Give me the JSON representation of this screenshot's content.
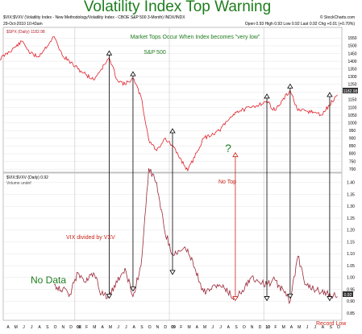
{
  "headline": "Volatility Index Top Warning",
  "header": {
    "symbol_line": "$VIX:$VXV (Volatility Index - New Methodology/Volatility Index - CBOE S&P 500 3-Month) INDX/INDX",
    "date": "29-Oct-2010 10:43am",
    "credit": "© StockCharts.com",
    "quote": "Open 0.93  High 0.93  Low 0.92  Last 0.92  Chg +0.01 (+0.70%)"
  },
  "colors": {
    "sp500": "#e0202a",
    "ratio": "#9a2a3a",
    "annotation_green": "#1e7d1e",
    "annotation_red": "#c8251a",
    "arrow": "#000000"
  },
  "chart_data": [
    {
      "type": "line",
      "title": "$SPX (Daily) 1182.98",
      "series": [
        {
          "name": "S&P 500",
          "x": [
            "2007-03",
            "2007-06",
            "2007-07",
            "2007-08",
            "2007-10",
            "2007-11",
            "2008-01",
            "2008-03",
            "2008-05",
            "2008-06",
            "2008-07",
            "2008-08",
            "2008-09",
            "2008-10",
            "2008-11",
            "2008-12",
            "2009-01",
            "2009-03",
            "2009-05",
            "2009-07",
            "2009-09",
            "2009-11",
            "2010-01",
            "2010-02",
            "2010-04",
            "2010-05",
            "2010-07",
            "2010-08",
            "2010-10"
          ],
          "values": [
            1410,
            1530,
            1450,
            1430,
            1560,
            1440,
            1350,
            1280,
            1420,
            1280,
            1250,
            1290,
            1170,
            890,
            820,
            900,
            850,
            690,
            900,
            950,
            1070,
            1100,
            1140,
            1080,
            1210,
            1080,
            1070,
            1050,
            1183
          ]
        }
      ],
      "ylim": [
        680,
        1620
      ],
      "yticks": [
        "1550",
        "1500",
        "1450",
        "1400",
        "1350",
        "1300",
        "1250",
        "1200",
        "1150",
        "1100",
        "1050",
        "1000",
        "950",
        "900",
        "850",
        "800",
        "750",
        "700"
      ],
      "last_label": "1182.98",
      "annotations": [
        "Market Tops Occur When Index becomes \"very low\"",
        "S&P 500",
        "?",
        "No Top"
      ]
    },
    {
      "type": "line",
      "title": "$VIX:$VXV (Daily) 0.92",
      "legend": "Volume undef",
      "series": [
        {
          "name": "VIX divided by VXV",
          "x": [
            "2007-10",
            "2007-12",
            "2008-01",
            "2008-02",
            "2008-03",
            "2008-04",
            "2008-05",
            "2008-06",
            "2008-07",
            "2008-08",
            "2008-09",
            "2008-10",
            "2008-11",
            "2008-12",
            "2009-01",
            "2009-03",
            "2009-05",
            "2009-07",
            "2009-09",
            "2009-11",
            "2010-01",
            "2010-02",
            "2010-04",
            "2010-05",
            "2010-06",
            "2010-07",
            "2010-08",
            "2010-10"
          ],
          "values": [
            0.97,
            0.93,
            1.02,
            0.98,
            1.02,
            0.93,
            0.92,
            0.98,
            1.04,
            0.92,
            1.05,
            1.46,
            1.4,
            1.2,
            1.1,
            1.12,
            0.94,
            0.97,
            0.91,
            1.0,
            0.97,
            0.99,
            0.9,
            1.09,
            0.97,
            0.95,
            0.94,
            0.92
          ]
        }
      ],
      "ylim": [
        0.82,
        1.44
      ],
      "yticks": [
        "1.40",
        "1.35",
        "1.30",
        "1.25",
        "1.20",
        "1.15",
        "1.10",
        "1.05",
        "1.00",
        "0.95",
        "0.90",
        "0.85"
      ],
      "last_label": "0.92",
      "annotations": [
        "No Data",
        "VIX divided by VXV",
        "Record Low"
      ]
    }
  ],
  "xaxis_labels": [
    "A",
    "M",
    "J",
    "J",
    "A",
    "S",
    "O",
    "N",
    "D",
    "08",
    "F",
    "M",
    "A",
    "M",
    "J",
    "J",
    "A",
    "S",
    "O",
    "N",
    "D",
    "09",
    "F",
    "M",
    "A",
    "M",
    "J",
    "J",
    "A",
    "S",
    "O",
    "N",
    "D",
    "10",
    "F",
    "M",
    "A",
    "M",
    "J",
    "J",
    "A",
    "S",
    "O"
  ],
  "spx_quote": "1182.98",
  "ratio_quote": "0.92"
}
